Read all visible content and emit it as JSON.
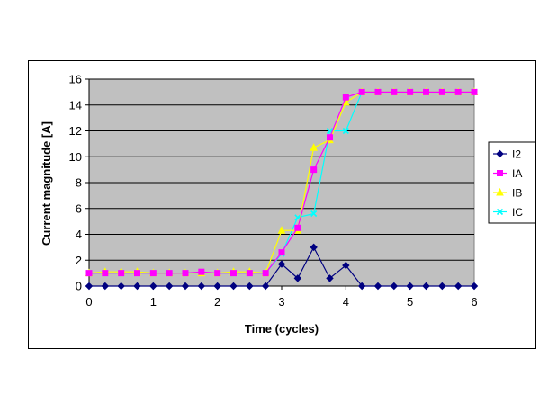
{
  "chart_data": {
    "type": "line",
    "title": "",
    "xlabel": "Time (cycles)",
    "ylabel": "Current magnitude [A]",
    "xlim": [
      0,
      6
    ],
    "ylim": [
      0,
      16
    ],
    "xticks": [
      "0",
      "1",
      "2",
      "3",
      "4",
      "5",
      "6"
    ],
    "yticks": [
      "0",
      "2",
      "4",
      "6",
      "8",
      "10",
      "12",
      "14",
      "16"
    ],
    "grid": true,
    "legend_position": "right",
    "plot_background": "#c0c0c0",
    "x": [
      0,
      0.25,
      0.5,
      0.75,
      1,
      1.25,
      1.5,
      1.75,
      2,
      2.25,
      2.5,
      2.75,
      3,
      3.25,
      3.5,
      3.75,
      4,
      4.25,
      4.5,
      4.75,
      5,
      5.25,
      5.5,
      5.75,
      6
    ],
    "series": [
      {
        "name": "I2",
        "color": "#000080",
        "marker": "diamond",
        "values": [
          0,
          0,
          0,
          0,
          0,
          0,
          0,
          0,
          0,
          0,
          0,
          0,
          1.7,
          0.6,
          3.0,
          0.6,
          1.6,
          0,
          0,
          0,
          0,
          0,
          0,
          0,
          0
        ]
      },
      {
        "name": "IA",
        "color": "#ff00ff",
        "marker": "square",
        "values": [
          1.0,
          1.0,
          1.0,
          1.0,
          1.0,
          1.0,
          1.0,
          1.1,
          1.0,
          1.0,
          1.0,
          1.0,
          2.6,
          4.5,
          9.0,
          11.5,
          14.6,
          15.0,
          15.0,
          15.0,
          15.0,
          15.0,
          15.0,
          15.0,
          15.0
        ]
      },
      {
        "name": "IB",
        "color": "#ffff00",
        "marker": "triangle",
        "values": [
          1.0,
          1.1,
          1.1,
          1.1,
          1.0,
          1.0,
          1.0,
          1.0,
          1.0,
          1.1,
          1.1,
          1.0,
          4.3,
          4.3,
          10.7,
          11.3,
          14.2,
          15.0,
          15.0,
          15.0,
          15.0,
          15.0,
          15.0,
          15.0,
          15.0
        ]
      },
      {
        "name": "IC",
        "color": "#00ffff",
        "marker": "x",
        "values": [
          1.0,
          1.0,
          1.0,
          1.0,
          1.0,
          1.0,
          1.0,
          1.0,
          1.0,
          1.0,
          1.0,
          1.0,
          2.5,
          5.3,
          5.6,
          12.0,
          12.0,
          15.0,
          15.0,
          15.0,
          15.0,
          15.0,
          15.0,
          15.0,
          15.0
        ]
      }
    ]
  }
}
